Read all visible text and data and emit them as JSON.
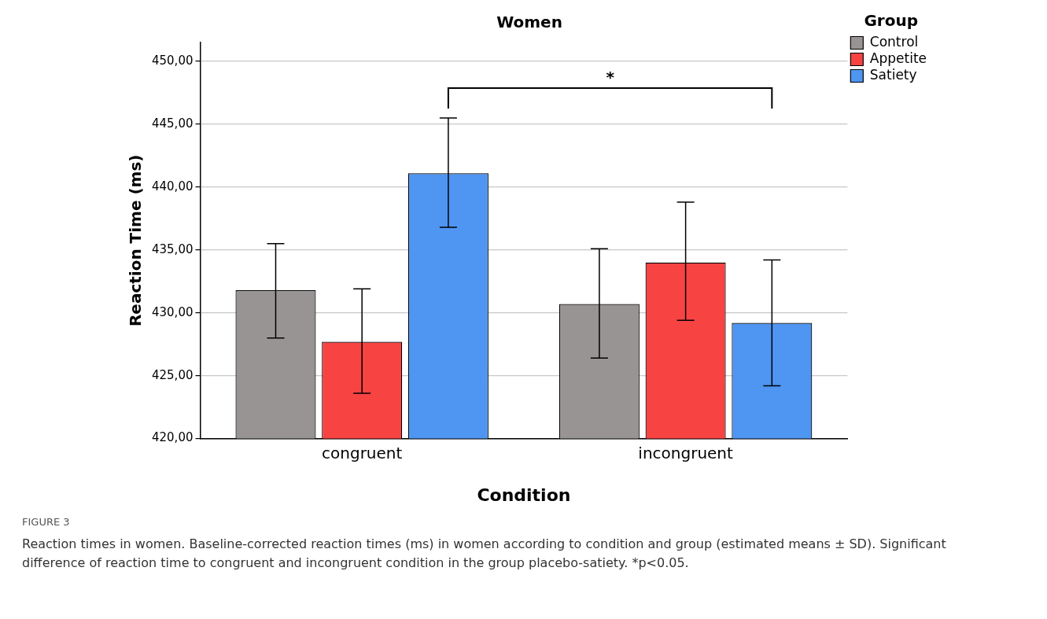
{
  "chart_data": {
    "type": "bar",
    "title": "Women",
    "xlabel": "Condition",
    "ylabel": "Reaction Time (ms)",
    "legend_title": "Group",
    "categories": [
      "congruent",
      "incongruent"
    ],
    "series": [
      {
        "name": "Control",
        "color": "#999494",
        "values": [
          431.8,
          430.7
        ],
        "errors": [
          [
            428.0,
            435.5
          ],
          [
            426.4,
            435.1
          ]
        ]
      },
      {
        "name": "Appetite",
        "color": "#f84343",
        "values": [
          427.7,
          434.0
        ],
        "errors": [
          [
            423.6,
            431.9
          ],
          [
            429.4,
            438.8
          ]
        ]
      },
      {
        "name": "Satiety",
        "color": "#4f95f2",
        "values": [
          441.1,
          429.2
        ],
        "errors": [
          [
            436.8,
            445.5
          ],
          [
            424.2,
            434.2
          ]
        ]
      }
    ],
    "ylim": [
      420,
      451.5
    ],
    "yticks": [
      {
        "value": 420,
        "label": "420,00"
      },
      {
        "value": 425,
        "label": "425,00"
      },
      {
        "value": 430,
        "label": "430,00"
      },
      {
        "value": 435,
        "label": "435,00"
      },
      {
        "value": 440,
        "label": "440,00"
      },
      {
        "value": 445,
        "label": "445,00"
      },
      {
        "value": 450,
        "label": "450,00"
      }
    ],
    "grid": "y",
    "legend": "top right",
    "annotations": [
      "*",
      "FIGURE 3",
      "Reaction times in women. Baseline-corrected reaction times (ms) in women according to condition and group (estimated means ± SD). Significant difference of reaction time to congruent and incongruent condition in the group placebo-satiety. *p<0.05."
    ]
  }
}
